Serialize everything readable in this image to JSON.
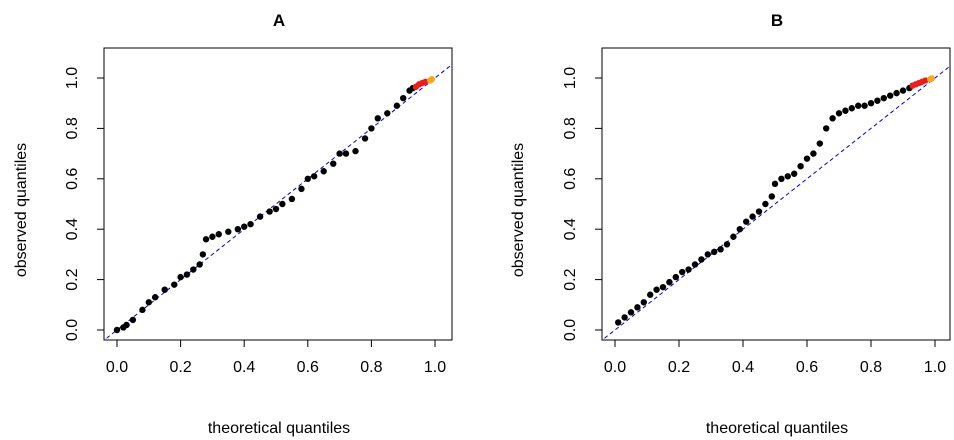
{
  "chart_data": [
    {
      "type": "scatter",
      "title": "A",
      "xlabel": "theoretical quantiles",
      "ylabel": "observed quantiles",
      "xlim": [
        0,
        1
      ],
      "ylim": [
        0,
        1
      ],
      "xticks": [
        "0.0",
        "0.2",
        "0.4",
        "0.6",
        "0.8",
        "1.0"
      ],
      "yticks": [
        "0.0",
        "0.2",
        "0.4",
        "0.6",
        "0.8",
        "1.0"
      ],
      "reference_line": {
        "style": "dashed",
        "color": "#0000cc",
        "from": [
          0,
          0
        ],
        "to": [
          1,
          1
        ]
      },
      "grid": false,
      "legend": "none",
      "series": [
        {
          "color": "#000000",
          "x": [
            0.0,
            0.02,
            0.03,
            0.05,
            0.08,
            0.1,
            0.12,
            0.15,
            0.18,
            0.2,
            0.22,
            0.24,
            0.26,
            0.27,
            0.28,
            0.3,
            0.32,
            0.35,
            0.38,
            0.4,
            0.42,
            0.45,
            0.48,
            0.5,
            0.52,
            0.55,
            0.58,
            0.6,
            0.62,
            0.65,
            0.68,
            0.7,
            0.72,
            0.75,
            0.78,
            0.8,
            0.82,
            0.85,
            0.88,
            0.9,
            0.92,
            0.93
          ],
          "y": [
            0.0,
            0.01,
            0.02,
            0.04,
            0.08,
            0.11,
            0.13,
            0.16,
            0.18,
            0.21,
            0.22,
            0.24,
            0.26,
            0.3,
            0.36,
            0.37,
            0.38,
            0.39,
            0.4,
            0.41,
            0.42,
            0.45,
            0.47,
            0.48,
            0.5,
            0.52,
            0.56,
            0.6,
            0.61,
            0.63,
            0.66,
            0.7,
            0.7,
            0.71,
            0.76,
            0.8,
            0.84,
            0.86,
            0.89,
            0.92,
            0.95,
            0.96
          ]
        },
        {
          "color": "#e8201c",
          "x": [
            0.94,
            0.95,
            0.96,
            0.97
          ],
          "y": [
            0.965,
            0.975,
            0.98,
            0.985
          ]
        },
        {
          "color": "#f5a623",
          "x": [
            0.985,
            0.99
          ],
          "y": [
            0.99,
            0.995
          ]
        }
      ]
    },
    {
      "type": "scatter",
      "title": "B",
      "xlabel": "theoretical quantiles",
      "ylabel": "observed quantiles",
      "xlim": [
        0,
        1
      ],
      "ylim": [
        0,
        1
      ],
      "xticks": [
        "0.0",
        "0.2",
        "0.4",
        "0.6",
        "0.8",
        "1.0"
      ],
      "yticks": [
        "0.0",
        "0.2",
        "0.4",
        "0.6",
        "0.8",
        "1.0"
      ],
      "reference_line": {
        "style": "dashed",
        "color": "#0000cc",
        "from": [
          0,
          0
        ],
        "to": [
          1,
          1
        ]
      },
      "grid": false,
      "legend": "none",
      "series": [
        {
          "color": "#000000",
          "x": [
            0.01,
            0.03,
            0.05,
            0.07,
            0.09,
            0.11,
            0.13,
            0.15,
            0.17,
            0.19,
            0.21,
            0.23,
            0.25,
            0.27,
            0.29,
            0.31,
            0.33,
            0.35,
            0.37,
            0.39,
            0.41,
            0.43,
            0.45,
            0.47,
            0.49,
            0.5,
            0.52,
            0.54,
            0.56,
            0.58,
            0.6,
            0.62,
            0.64,
            0.66,
            0.68,
            0.7,
            0.72,
            0.74,
            0.76,
            0.78,
            0.8,
            0.82,
            0.84,
            0.86,
            0.88,
            0.9,
            0.92
          ],
          "y": [
            0.03,
            0.05,
            0.07,
            0.09,
            0.11,
            0.14,
            0.16,
            0.17,
            0.19,
            0.21,
            0.23,
            0.24,
            0.26,
            0.28,
            0.3,
            0.31,
            0.32,
            0.34,
            0.37,
            0.4,
            0.43,
            0.45,
            0.47,
            0.5,
            0.53,
            0.58,
            0.6,
            0.61,
            0.62,
            0.65,
            0.68,
            0.7,
            0.74,
            0.8,
            0.84,
            0.86,
            0.87,
            0.88,
            0.89,
            0.89,
            0.9,
            0.91,
            0.92,
            0.93,
            0.94,
            0.95,
            0.96
          ]
        },
        {
          "color": "#e8201c",
          "x": [
            0.93,
            0.94,
            0.95,
            0.96,
            0.97
          ],
          "y": [
            0.97,
            0.975,
            0.98,
            0.985,
            0.99
          ]
        },
        {
          "color": "#f5a623",
          "x": [
            0.985,
            0.99
          ],
          "y": [
            0.995,
            0.998
          ]
        }
      ]
    }
  ]
}
